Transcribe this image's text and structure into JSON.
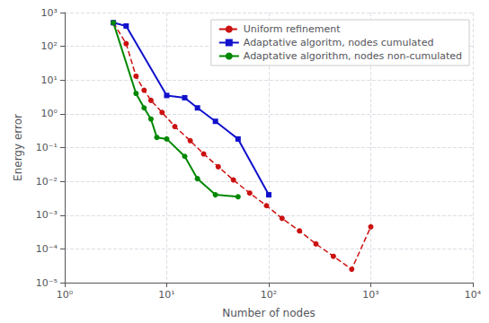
{
  "chart_data": {
    "type": "line",
    "xlabel": "Number of nodes",
    "ylabel": "Energy error",
    "log": true,
    "grid": true,
    "legend": "upper right",
    "xlim": [
      1,
      10000
    ],
    "ylim": [
      1e-05,
      1000
    ],
    "xticks": [
      {
        "value": 1,
        "label": "10⁰"
      },
      {
        "value": 10,
        "label": "10¹"
      },
      {
        "value": 100,
        "label": "10²"
      },
      {
        "value": 1000,
        "label": "10³"
      },
      {
        "value": 10000,
        "label": "10⁴"
      }
    ],
    "yticks": [
      {
        "value": 1e-05,
        "label": "10⁻⁵"
      },
      {
        "value": 0.0001,
        "label": "10⁻⁴"
      },
      {
        "value": 0.001,
        "label": "10⁻³"
      },
      {
        "value": 0.01,
        "label": "10⁻²"
      },
      {
        "value": 0.1,
        "label": "10⁻¹"
      },
      {
        "value": 1,
        "label": "10⁰"
      },
      {
        "value": 10,
        "label": "10¹"
      },
      {
        "value": 100,
        "label": "10²"
      },
      {
        "value": 1000,
        "label": "10³"
      }
    ],
    "series": [
      {
        "name": "Uniform refinement",
        "color": "#cc1111",
        "line_style": "dashed",
        "marker": "circle",
        "x": [
          3,
          4,
          5,
          6,
          7,
          9,
          12,
          17,
          23,
          32,
          45,
          65,
          95,
          135,
          200,
          290,
          430,
          650,
          1000
        ],
        "values": [
          500,
          120,
          13,
          5.0,
          2.5,
          1.1,
          0.42,
          0.16,
          0.065,
          0.027,
          0.011,
          0.0045,
          0.0019,
          0.0008,
          0.00034,
          0.00014,
          6e-05,
          2.5e-05,
          0.00045
        ]
      },
      {
        "name": "Adaptative algoritm, nodes cumulated",
        "color": "#1111cc",
        "line_style": "solid",
        "marker": "square",
        "x": [
          3,
          4,
          10,
          15,
          20,
          30,
          50,
          100
        ],
        "values": [
          500,
          400,
          3.5,
          3.0,
          1.5,
          0.6,
          0.18,
          0.004
        ]
      },
      {
        "name": "Adaptative algorithm, nodes non-cumulated",
        "color": "#008800",
        "line_style": "solid",
        "marker": "circle",
        "x": [
          3,
          5,
          6,
          7,
          8,
          10,
          15,
          20,
          30,
          50
        ],
        "values": [
          500,
          4.0,
          1.5,
          0.7,
          0.2,
          0.18,
          0.055,
          0.012,
          0.004,
          0.0035
        ]
      }
    ]
  }
}
